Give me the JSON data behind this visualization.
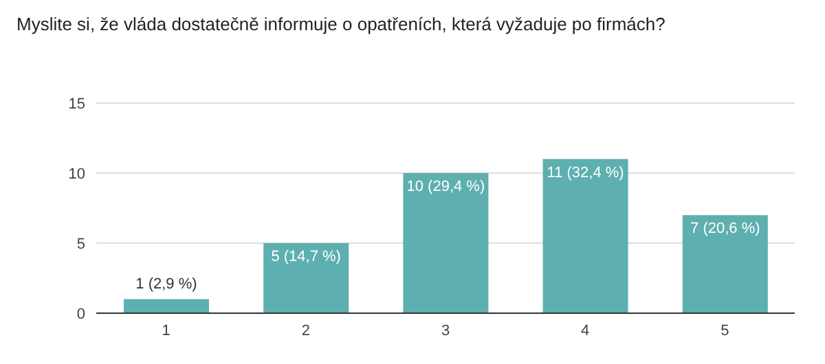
{
  "chart_data": {
    "type": "bar",
    "title": "Myslite si, že vláda dostatečně informuje o opatřeních, která vyžaduje po firmách?",
    "categories": [
      "1",
      "2",
      "3",
      "4",
      "5"
    ],
    "values": [
      1,
      5,
      10,
      11,
      7
    ],
    "value_labels": [
      "1 (2,9 %)",
      "5 (14,7 %)",
      "10 (29,4 %)",
      "11 (32,4 %)",
      "7 (20,6 %)"
    ],
    "color": "#5eafb0",
    "ylim": [
      0,
      15
    ],
    "yticks": [
      0,
      5,
      10,
      15
    ],
    "grid": "y"
  }
}
